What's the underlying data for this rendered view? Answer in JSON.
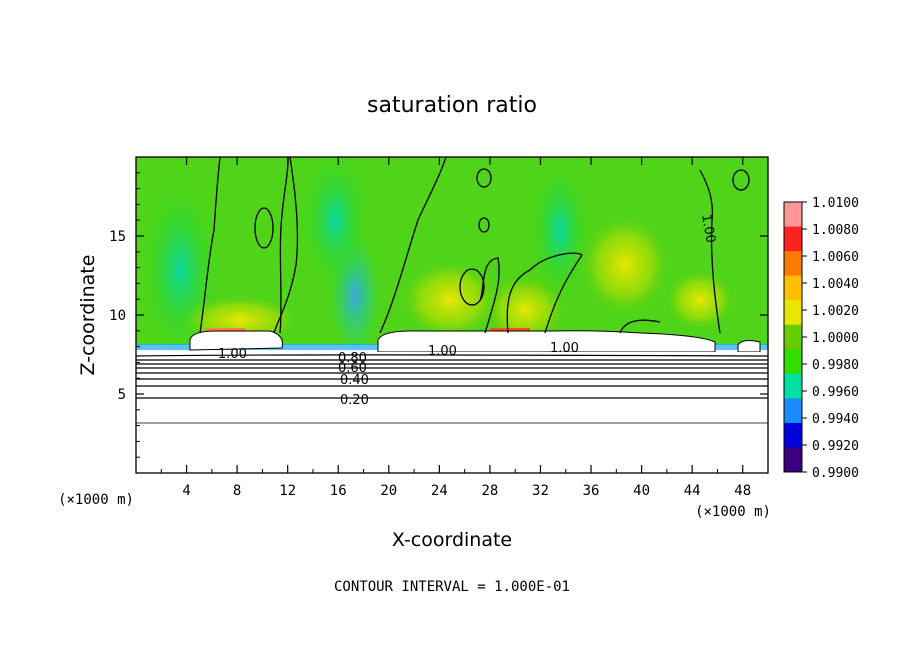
{
  "chart_data": {
    "type": "heatmap",
    "title": "saturation ratio",
    "xlabel": "X-coordinate",
    "ylabel": "Z-coordinate",
    "x_unit": "(×1000 m)",
    "y_unit": "(×1000 m)",
    "xlim": [
      0,
      50
    ],
    "ylim": [
      0,
      20
    ],
    "x_ticks": [
      4,
      8,
      12,
      16,
      20,
      24,
      28,
      32,
      36,
      40,
      44,
      48
    ],
    "y_ticks": [
      5,
      10,
      15
    ],
    "footer": "CONTOUR INTERVAL = 1.000E-01",
    "colorbar": {
      "ticks": [
        "1.0100",
        "1.0080",
        "1.0060",
        "1.0040",
        "1.0020",
        "1.0000",
        "0.9980",
        "0.9960",
        "0.9940",
        "0.9920",
        "0.9900"
      ],
      "colors": [
        "#ff9999",
        "#ff2020",
        "#ff7a00",
        "#ffc000",
        "#e6e600",
        "#66cc00",
        "#33dd00",
        "#00e0a0",
        "#1a8cff",
        "#0000dd",
        "#3a0080"
      ]
    },
    "contour_labels": [
      "1.00",
      "1.00",
      "1.00",
      "0.80",
      "0.60",
      "0.40",
      "0.20",
      "1.00"
    ],
    "contour_interval": 0.1
  }
}
